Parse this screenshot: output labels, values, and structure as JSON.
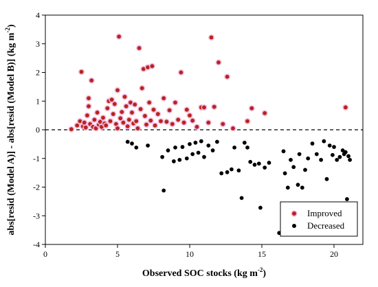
{
  "chart_data": {
    "type": "scatter",
    "xlabel": "Observed SOC stocks (kg m",
    "xlabel_sup": "-2",
    "xlabel_close": ")",
    "ylabel": "abs[resid (Model A)] - abs[resid (Model B)] (kg m",
    "ylabel_sup": "-2",
    "ylabel_close": ")",
    "xlim": [
      0,
      22
    ],
    "ylim": [
      -4,
      4
    ],
    "x_ticks": [
      "0",
      "5",
      "10",
      "15",
      "20"
    ],
    "y_ticks": [
      "-4",
      "-3",
      "-2",
      "-1",
      "0",
      "1",
      "2",
      "3",
      "4"
    ],
    "reference_line": {
      "y": 0,
      "style": "dashed"
    },
    "grid": false,
    "legend_position": "bottom-right",
    "series": [
      {
        "name": "Improved",
        "color": "#b8241c",
        "halo": "#f2b8e0",
        "points": [
          [
            1.8,
            0.02
          ],
          [
            2.2,
            0.15
          ],
          [
            2.4,
            0.3
          ],
          [
            2.5,
            2.02
          ],
          [
            2.6,
            0.12
          ],
          [
            2.7,
            0.25
          ],
          [
            2.8,
            0.08
          ],
          [
            2.9,
            0.5
          ],
          [
            3.0,
            0.82
          ],
          [
            3.0,
            1.1
          ],
          [
            3.1,
            0.2
          ],
          [
            3.2,
            1.72
          ],
          [
            3.3,
            0.1
          ],
          [
            3.4,
            0.35
          ],
          [
            3.5,
            0.05
          ],
          [
            3.6,
            0.6
          ],
          [
            3.7,
            0.18
          ],
          [
            3.8,
            0.28
          ],
          [
            3.9,
            0.1
          ],
          [
            4.0,
            0.42
          ],
          [
            4.1,
            0.22
          ],
          [
            4.2,
            0.15
          ],
          [
            4.3,
            0.75
          ],
          [
            4.4,
            1.0
          ],
          [
            4.5,
            0.3
          ],
          [
            4.6,
            1.05
          ],
          [
            4.7,
            0.55
          ],
          [
            4.8,
            0.9
          ],
          [
            4.9,
            0.2
          ],
          [
            5.0,
            1.38
          ],
          [
            5.0,
            0.05
          ],
          [
            5.1,
            3.25
          ],
          [
            5.2,
            0.4
          ],
          [
            5.3,
            0.62
          ],
          [
            5.4,
            0.25
          ],
          [
            5.5,
            1.15
          ],
          [
            5.6,
            0.82
          ],
          [
            5.7,
            0.12
          ],
          [
            5.8,
            0.35
          ],
          [
            5.9,
            0.95
          ],
          [
            6.0,
            0.6
          ],
          [
            6.1,
            0.22
          ],
          [
            6.2,
            0.88
          ],
          [
            6.3,
            0.3
          ],
          [
            6.4,
            0.05
          ],
          [
            6.5,
            2.85
          ],
          [
            6.6,
            0.72
          ],
          [
            6.7,
            1.45
          ],
          [
            6.8,
            2.12
          ],
          [
            6.9,
            0.48
          ],
          [
            7.0,
            0.18
          ],
          [
            7.1,
            2.18
          ],
          [
            7.2,
            0.95
          ],
          [
            7.3,
            0.32
          ],
          [
            7.4,
            2.22
          ],
          [
            7.5,
            0.7
          ],
          [
            7.6,
            0.15
          ],
          [
            7.8,
            0.55
          ],
          [
            8.0,
            0.3
          ],
          [
            8.2,
            1.1
          ],
          [
            8.4,
            0.28
          ],
          [
            8.6,
            0.68
          ],
          [
            8.8,
            0.2
          ],
          [
            9.0,
            0.95
          ],
          [
            9.2,
            0.35
          ],
          [
            9.4,
            2.0
          ],
          [
            9.6,
            0.25
          ],
          [
            9.8,
            0.7
          ],
          [
            10.0,
            0.5
          ],
          [
            10.2,
            0.32
          ],
          [
            10.5,
            0.1
          ],
          [
            10.8,
            0.78
          ],
          [
            11.0,
            0.78
          ],
          [
            11.3,
            0.25
          ],
          [
            11.5,
            3.22
          ],
          [
            11.7,
            0.8
          ],
          [
            12.0,
            2.35
          ],
          [
            12.3,
            0.2
          ],
          [
            12.6,
            1.85
          ],
          [
            13.0,
            0.05
          ],
          [
            14.0,
            0.3
          ],
          [
            14.3,
            0.75
          ],
          [
            15.2,
            0.58
          ],
          [
            20.8,
            0.78
          ]
        ]
      },
      {
        "name": "Decreased",
        "color": "#000000",
        "points": [
          [
            5.7,
            -0.42
          ],
          [
            6.0,
            -0.48
          ],
          [
            6.3,
            -0.62
          ],
          [
            7.1,
            -0.55
          ],
          [
            8.1,
            -0.95
          ],
          [
            8.2,
            -2.12
          ],
          [
            8.5,
            -0.72
          ],
          [
            8.9,
            -1.1
          ],
          [
            9.0,
            -0.62
          ],
          [
            9.3,
            -1.05
          ],
          [
            9.5,
            -0.6
          ],
          [
            9.8,
            -1.0
          ],
          [
            10.0,
            -0.5
          ],
          [
            10.2,
            -0.85
          ],
          [
            10.4,
            -0.45
          ],
          [
            10.6,
            -0.8
          ],
          [
            10.8,
            -0.4
          ],
          [
            11.0,
            -0.95
          ],
          [
            11.3,
            -0.55
          ],
          [
            11.6,
            -0.72
          ],
          [
            11.9,
            -0.42
          ],
          [
            12.2,
            -1.52
          ],
          [
            12.6,
            -1.48
          ],
          [
            12.9,
            -1.38
          ],
          [
            13.1,
            -0.62
          ],
          [
            13.4,
            -1.42
          ],
          [
            13.6,
            -2.38
          ],
          [
            13.8,
            -0.45
          ],
          [
            14.0,
            -0.62
          ],
          [
            14.2,
            -1.12
          ],
          [
            14.5,
            -1.22
          ],
          [
            14.8,
            -1.18
          ],
          [
            14.9,
            -2.72
          ],
          [
            15.2,
            -1.32
          ],
          [
            15.5,
            -1.15
          ],
          [
            16.2,
            -3.6
          ],
          [
            16.5,
            -0.75
          ],
          [
            16.6,
            -1.52
          ],
          [
            16.8,
            -2.02
          ],
          [
            17.0,
            -1.05
          ],
          [
            17.2,
            -1.3
          ],
          [
            17.5,
            -1.92
          ],
          [
            17.6,
            -0.85
          ],
          [
            17.8,
            -2.02
          ],
          [
            18.0,
            -1.4
          ],
          [
            18.2,
            -1.0
          ],
          [
            18.5,
            -0.48
          ],
          [
            18.8,
            -0.85
          ],
          [
            19.1,
            -1.05
          ],
          [
            19.3,
            -0.4
          ],
          [
            19.5,
            -1.72
          ],
          [
            19.7,
            -0.55
          ],
          [
            19.9,
            -0.88
          ],
          [
            20.0,
            -0.6
          ],
          [
            20.2,
            -1.05
          ],
          [
            20.4,
            -0.95
          ],
          [
            20.6,
            -0.72
          ],
          [
            20.7,
            -0.85
          ],
          [
            20.8,
            -0.78
          ],
          [
            20.9,
            -2.42
          ],
          [
            21.0,
            -0.92
          ],
          [
            21.1,
            -1.05
          ]
        ]
      }
    ]
  }
}
